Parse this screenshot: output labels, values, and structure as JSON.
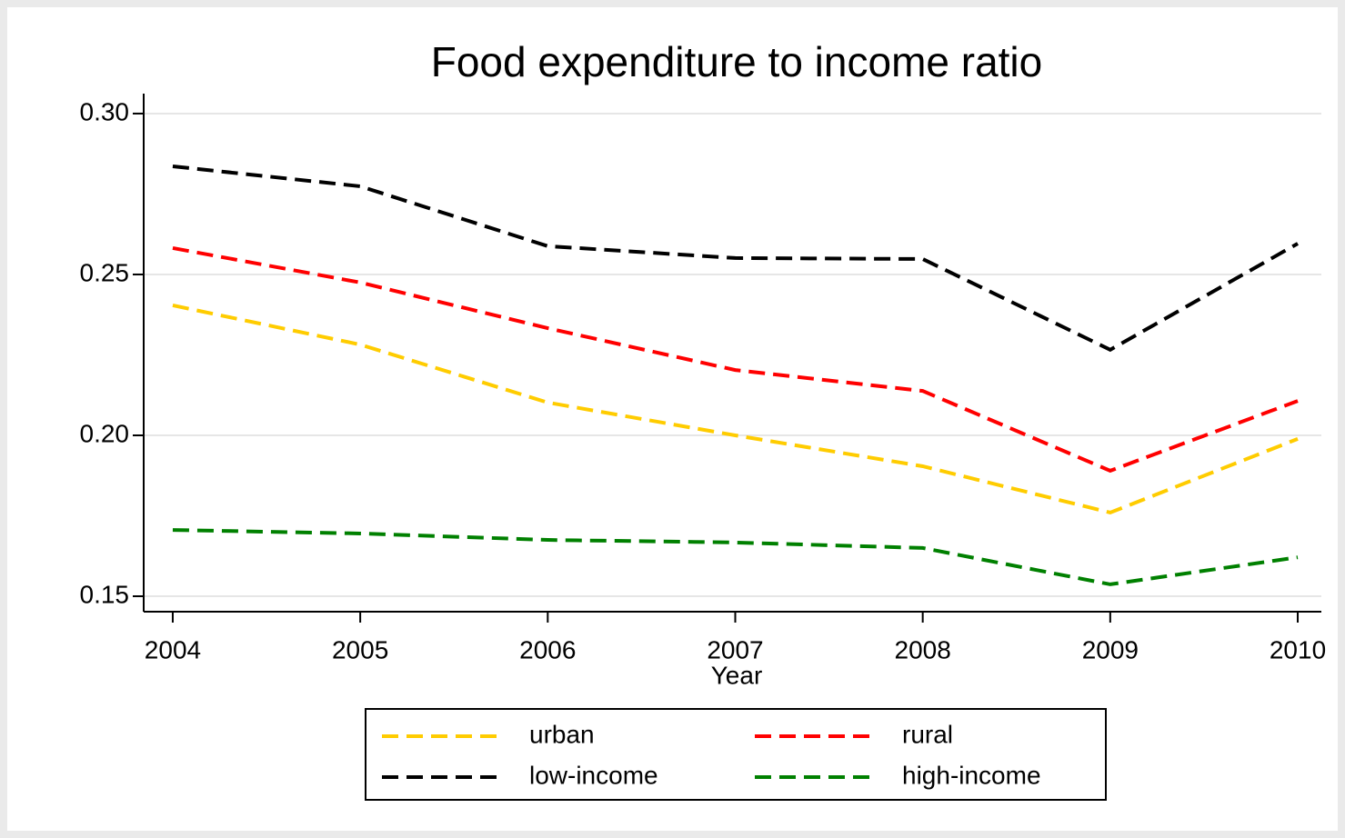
{
  "chart_data": {
    "type": "line",
    "title": "Food expenditure to income ratio",
    "x_label": "Year",
    "x": [
      2004,
      2005,
      2006,
      2007,
      2008,
      2009,
      2010
    ],
    "xlim": [
      2003.845,
      2010.126
    ],
    "xticks": [
      2004,
      2005,
      2006,
      2007,
      2008,
      2009,
      2010
    ],
    "ylim": [
      0.1452,
      0.3062
    ],
    "yticks": [
      {
        "value": 0.15,
        "label": "0.15"
      },
      {
        "value": 0.2,
        "label": "0.20"
      },
      {
        "value": 0.25,
        "label": "0.25"
      },
      {
        "value": 0.3,
        "label": "0.30"
      }
    ],
    "grid": true,
    "legend_position": "bottom",
    "series": [
      {
        "name": "urban",
        "color": "#ffcc00",
        "values": [
          0.2404,
          0.2282,
          0.2102,
          0.2,
          0.1904,
          0.176,
          0.1989
        ]
      },
      {
        "name": "rural",
        "color": "#ff0000",
        "values": [
          0.2582,
          0.2475,
          0.2333,
          0.2203,
          0.2138,
          0.189,
          0.2107
        ]
      },
      {
        "name": "low-income",
        "color": "#000000",
        "values": [
          0.2836,
          0.2774,
          0.2588,
          0.2551,
          0.2548,
          0.2266,
          0.2596
        ]
      },
      {
        "name": "high-income",
        "color": "#008000",
        "values": [
          0.1706,
          0.1695,
          0.1675,
          0.1667,
          0.165,
          0.1537,
          0.1621
        ]
      }
    ]
  }
}
